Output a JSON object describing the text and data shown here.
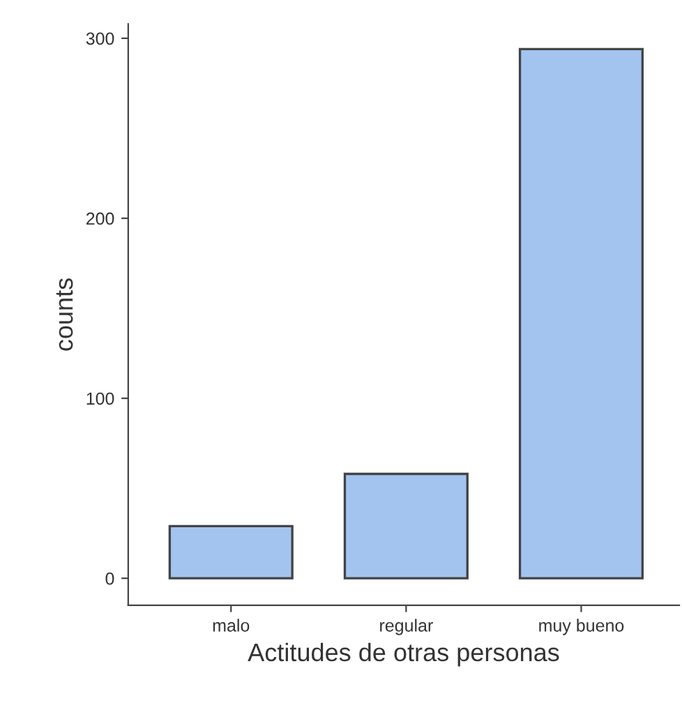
{
  "chart_data": {
    "type": "bar",
    "xlabel": "Actitudes de otras personas",
    "ylabel": "counts",
    "categories": [
      "malo",
      "regular",
      "muy bueno"
    ],
    "values": [
      29,
      58,
      294
    ],
    "color": "#a4c4f0",
    "ylim": [
      -15,
      308
    ],
    "yticks": [
      0,
      100,
      200,
      300
    ],
    "grid": false
  }
}
